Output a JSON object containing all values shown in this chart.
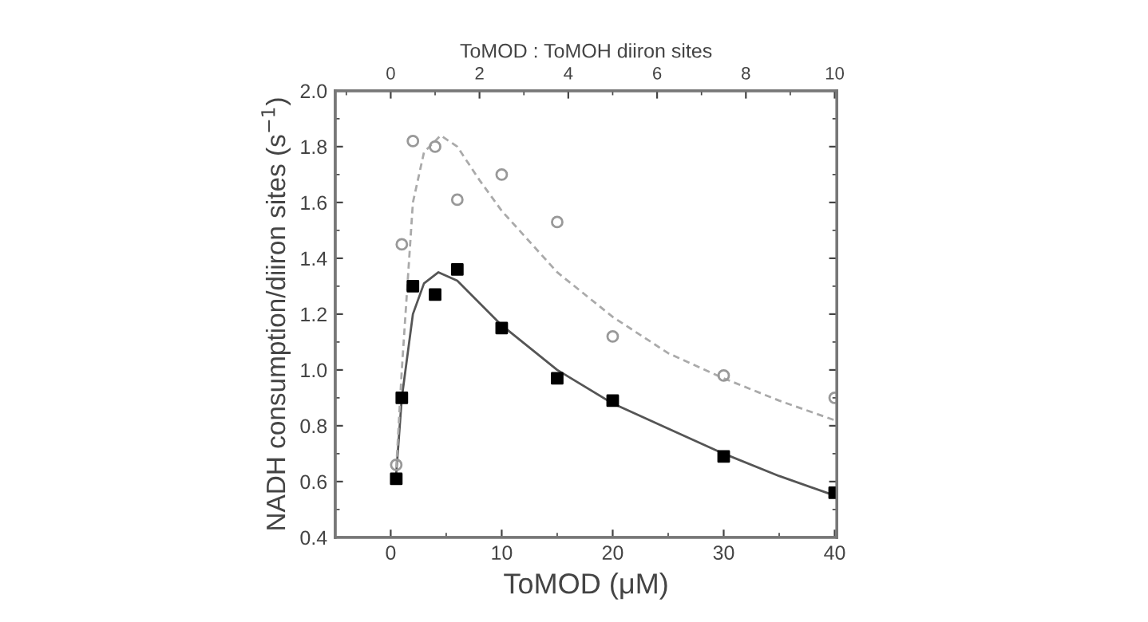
{
  "chart_data": {
    "type": "scatter",
    "xlabel": "ToMOD (μM)",
    "ylabel": "NADH consumption/diiron sites (s$^{−1}$)",
    "x2label": "ToMOD : ToMOH diiron sites",
    "xlim": [
      -5,
      40.2
    ],
    "xticks": [
      0,
      10,
      20,
      30,
      40
    ],
    "x2lim": [
      -1.25,
      10.05
    ],
    "x2ticks": [
      0,
      2,
      4,
      6,
      8,
      10
    ],
    "ylim": [
      0.4,
      2.0
    ],
    "yticks": [
      0.4,
      0.6,
      0.8,
      {
        "value": 1,
        "label": "1.0"
      },
      1.2,
      1.4,
      1.6,
      1.8,
      {
        "value": 2,
        "label": "2.0"
      }
    ],
    "grid": false,
    "legend": false,
    "series": [
      {
        "marker": "square",
        "color": "#000000",
        "x": [
          0.5,
          1,
          2,
          4,
          6,
          10,
          15,
          20,
          30,
          40
        ],
        "values": [
          0.61,
          0.9,
          1.3,
          1.27,
          1.36,
          1.15,
          0.97,
          0.89,
          0.69,
          0.56
        ]
      },
      {
        "marker": "circle",
        "color": "#999999",
        "x": [
          0.5,
          1,
          2,
          4,
          6,
          10,
          15,
          20,
          30,
          40
        ],
        "values": [
          0.66,
          1.45,
          1.82,
          1.8,
          1.61,
          1.7,
          1.53,
          1.12,
          0.98,
          0.9
        ]
      },
      {
        "type": "line",
        "marker": "none",
        "line_style": "solid",
        "color": "#555555",
        "x": [
          0.5,
          1,
          2,
          3,
          4.3,
          6,
          10,
          15,
          20,
          25,
          30,
          35,
          40
        ],
        "values": [
          0.63,
          0.9,
          1.2,
          1.31,
          1.35,
          1.32,
          1.16,
          1.0,
          0.88,
          0.79,
          0.7,
          0.62,
          0.55
        ]
      },
      {
        "type": "line",
        "marker": "none",
        "line_style": "dashed",
        "color": "#aaaaaa",
        "x": [
          0.5,
          1,
          1.5,
          2,
          3,
          4.5,
          6,
          8,
          10,
          15,
          20,
          25,
          30,
          35,
          40
        ],
        "values": [
          0.65,
          1.0,
          1.3,
          1.6,
          1.78,
          1.84,
          1.8,
          1.68,
          1.57,
          1.35,
          1.19,
          1.06,
          0.97,
          0.89,
          0.82
        ]
      }
    ]
  }
}
